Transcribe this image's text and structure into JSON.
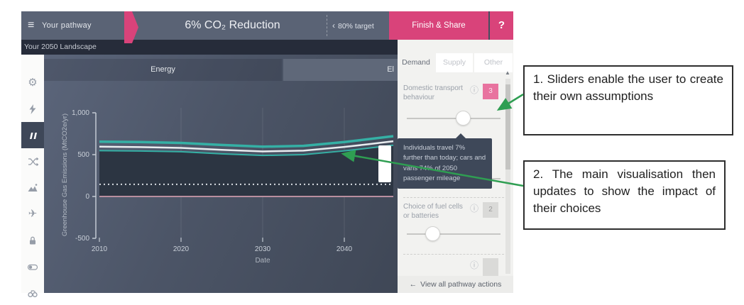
{
  "top_bar": {
    "menu_label": "Your pathway",
    "title": "6% CO₂ Reduction",
    "target_chevron": "‹",
    "target_label": "80% target",
    "finish_label": "Finish & Share",
    "help_label": "?"
  },
  "landscape_bar": {
    "label": "Your 2050 Landscape"
  },
  "sidebar": {
    "icons": [
      "gear-icon",
      "lightning-icon",
      "bar-chart-icon",
      "shuffle-icon",
      "mountains-icon",
      "plane-icon",
      "lock-icon",
      "toggle-icon",
      "binoculars-icon"
    ],
    "selected_index": 2
  },
  "chart_tabs": [
    {
      "label": "Energy",
      "selected": true
    },
    {
      "label": "El",
      "selected": false
    }
  ],
  "chart_data": {
    "type": "line",
    "xlabel": "Date",
    "ylabel": "Greenhouse Gas Emissions (MtCO2e/yr)",
    "xlim": [
      2010,
      2046
    ],
    "ylim": [
      -500,
      1000
    ],
    "grid": "vertical-only",
    "legend": "none",
    "area_fill_color": "#2c3542",
    "yticks": [
      {
        "value": 1000,
        "label": "1,000"
      },
      {
        "value": 500,
        "label": "500"
      },
      {
        "value": 0,
        "label": "0"
      },
      {
        "value": -500,
        "label": "-500"
      }
    ],
    "xticks": [
      2010,
      2020,
      2030,
      2040
    ],
    "x": [
      2010,
      2015,
      2020,
      2025,
      2030,
      2035,
      2040,
      2043,
      2046
    ],
    "series": [
      {
        "name": "total-emissions-teal-line",
        "color": "#35b0a5",
        "values": [
          655,
          650,
          640,
          615,
          595,
          605,
          650,
          685,
          720
        ]
      },
      {
        "name": "emissions-white-line",
        "color": "#e9edf0",
        "values": [
          595,
          590,
          580,
          557,
          538,
          548,
          592,
          625,
          660
        ]
      },
      {
        "name": "emissions-band-bottom-teal-line",
        "color": "#35b0a5",
        "values": [
          548,
          543,
          535,
          510,
          490,
          500,
          545,
          578,
          612
        ]
      },
      {
        "name": "target-dotted-line",
        "color": "#d7dce2",
        "style": "dotted",
        "values": [
          145,
          145,
          145,
          145,
          145,
          145,
          145,
          145,
          145
        ]
      },
      {
        "name": "zero-baseline",
        "color": "#b98f9f",
        "values": [
          0,
          0,
          0,
          0,
          0,
          0,
          0,
          0,
          0
        ]
      }
    ]
  },
  "panel": {
    "tabs": [
      {
        "label": "Demand",
        "selected": true
      },
      {
        "label": "Supply",
        "selected": false
      },
      {
        "label": "Other",
        "selected": false
      }
    ],
    "info_icon": "ⓘ",
    "controls": [
      {
        "label": "Domestic transport behaviour",
        "level": "3",
        "level_style": "pink",
        "slider_pos": 0.6
      },
      {
        "slider_pos": 0.57
      },
      {
        "label": "Choice of fuel cells or batteries",
        "level": "2",
        "level_style": "gray",
        "slider_pos": 0.28
      }
    ],
    "tooltip": "Individuals travel 7% further than today; cars and vans 74% of 2050 passenger mileage",
    "scroll_up_arrow": "▲",
    "footer": {
      "back_arrow": "←",
      "label": "View all pathway actions"
    }
  },
  "annotations": {
    "arrow_color": "#2f9e52",
    "boxes": [
      {
        "text": "1. Sliders enable the user to create their own assumptions"
      },
      {
        "text": "2. The main visualisation then updates to show the impact of their choices"
      }
    ]
  },
  "colors": {
    "accent_pink": "#d9437a",
    "top_bar": "#5a6375",
    "panel_bg": "#f2f2f0",
    "teal": "#35b0a5",
    "dark_bar": "#262c3a"
  }
}
